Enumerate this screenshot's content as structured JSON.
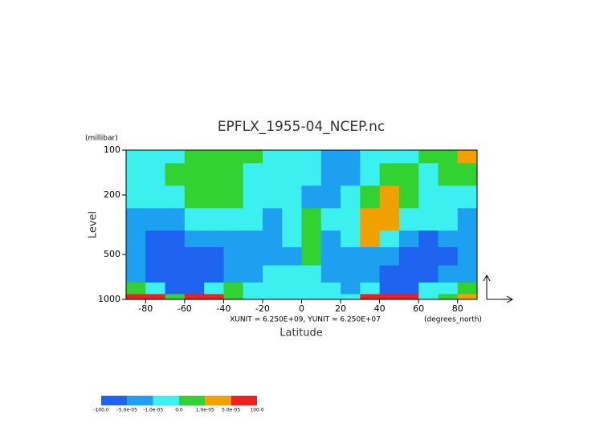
{
  "chart_data": {
    "type": "contour",
    "title": "EPFLX_1955-04_NCEP.nc",
    "x_label": "Latitude",
    "x_unit": "(degrees_north)",
    "y_label": "Level",
    "y_unit": "(millibar)",
    "annotation": "XUNIT = 6.250E+09, YUNIT = 6.250E+07",
    "xlim": [
      -90,
      90
    ],
    "xticks": [
      -80,
      -60,
      -40,
      -20,
      0,
      20,
      40,
      60,
      80
    ],
    "ylim": [
      100,
      1000
    ],
    "yticks": [
      100,
      200,
      500,
      1000
    ],
    "y_log": true,
    "y_inverted": true,
    "x": [
      -85,
      -75,
      -65,
      -55,
      -45,
      -35,
      -25,
      -15,
      -5,
      5,
      15,
      25,
      35,
      45,
      55,
      65,
      75,
      85
    ],
    "y": [
      100,
      150,
      200,
      300,
      400,
      500,
      700,
      850,
      1000
    ],
    "z": [
      [
        -5e-06,
        -5e-06,
        -5e-06,
        5e-06,
        5e-06,
        5e-06,
        5e-06,
        -5e-06,
        -5e-06,
        -5e-06,
        -3e-05,
        -3e-05,
        -5e-06,
        -5e-06,
        -5e-06,
        5e-06,
        5e-06,
        3e-05
      ],
      [
        -5e-06,
        -5e-06,
        5e-06,
        5e-06,
        5e-06,
        5e-06,
        -5e-06,
        -5e-06,
        -5e-06,
        -5e-06,
        -3e-05,
        -3e-05,
        -5e-06,
        5e-06,
        5e-06,
        -5e-06,
        5e-06,
        5e-06
      ],
      [
        -5e-06,
        -5e-06,
        -5e-06,
        5e-06,
        5e-06,
        5e-06,
        -5e-06,
        -5e-06,
        -5e-06,
        -3e-05,
        -3e-05,
        -5e-06,
        5e-06,
        3e-05,
        5e-06,
        -5e-06,
        -5e-06,
        -5e-06
      ],
      [
        -3e-05,
        -3e-05,
        -3e-05,
        -5e-06,
        -5e-06,
        -5e-06,
        -5e-06,
        -3e-05,
        -5e-06,
        5e-06,
        -5e-06,
        -5e-06,
        3e-05,
        3e-05,
        -5e-06,
        -5e-06,
        -5e-06,
        -3e-05
      ],
      [
        -3e-05,
        -7e-05,
        -7e-05,
        -3e-05,
        -3e-05,
        -3e-05,
        -3e-05,
        -3e-05,
        -5e-06,
        5e-06,
        -3e-05,
        -5e-06,
        3e-05,
        -5e-06,
        -3e-05,
        -7e-05,
        -3e-05,
        -3e-05
      ],
      [
        -3e-05,
        -7e-05,
        -7e-05,
        -7e-05,
        -7e-05,
        -3e-05,
        -3e-05,
        -3e-05,
        -3e-05,
        5e-06,
        -3e-05,
        -3e-05,
        -3e-05,
        -3e-05,
        -7e-05,
        -7e-05,
        -7e-05,
        -3e-05
      ],
      [
        -3e-05,
        -7e-05,
        -7e-05,
        -7e-05,
        -7e-05,
        -3e-05,
        -3e-05,
        -5e-06,
        -5e-06,
        -5e-06,
        -3e-05,
        -3e-05,
        -3e-05,
        -7e-05,
        -7e-05,
        -7e-05,
        -3e-05,
        -3e-05
      ],
      [
        5e-06,
        -5e-06,
        -7e-05,
        -7e-05,
        -5e-06,
        5e-06,
        -5e-06,
        -5e-06,
        -5e-06,
        -5e-06,
        -5e-06,
        -3e-05,
        -5e-06,
        -7e-05,
        -7e-05,
        -5e-06,
        -5e-06,
        5e-06
      ],
      [
        8e-05,
        8e-05,
        5e-06,
        8e-05,
        8e-05,
        5e-06,
        -5e-06,
        -5e-06,
        -5e-06,
        -5e-06,
        -5e-06,
        -5e-06,
        8e-05,
        8e-05,
        8e-05,
        -5e-06,
        5e-06,
        3e-05
      ]
    ],
    "levels": [
      {
        "value": -100,
        "label": "-100.0"
      },
      {
        "value": -5e-05,
        "label": "-5.0e-05"
      },
      {
        "value": -1e-05,
        "label": "-1.0e-05"
      },
      {
        "value": 0,
        "label": "0.0"
      },
      {
        "value": 1e-05,
        "label": "1.0e-05"
      },
      {
        "value": 5e-05,
        "label": "5.0e-05"
      },
      {
        "value": 100,
        "label": "100.0"
      }
    ],
    "colors": [
      "#1e64f0",
      "#1ea0f0",
      "#3cf0f0",
      "#32d232",
      "#f0a000",
      "#f01e1e"
    ]
  }
}
